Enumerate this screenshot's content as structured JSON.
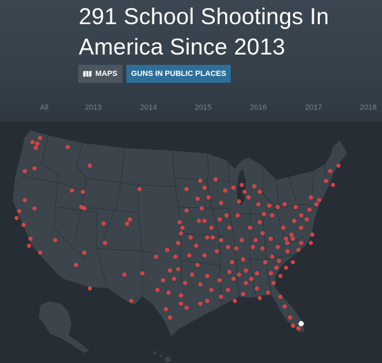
{
  "page": {
    "title": "291 School Shootings In America Since 2013"
  },
  "tags": [
    {
      "label": "MAPS",
      "icon": "map-icon"
    },
    {
      "label": "GUNS IN PUBLIC PLACES",
      "icon": ""
    }
  ],
  "timeline": {
    "labels": [
      "All",
      "2013",
      "2014",
      "2015",
      "2016",
      "2017",
      "2018"
    ]
  },
  "map": {
    "type": "point-map",
    "region": "United States",
    "land_color": "#3c444c",
    "border_color": "#2a3038",
    "marker_color": "#e23b3b",
    "highlight_color": "#ffffff"
  }
}
